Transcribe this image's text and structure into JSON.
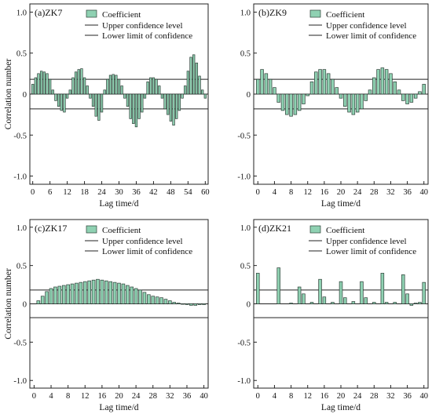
{
  "colors": {
    "bar_fill": "#8fd1b2",
    "bar_stroke": "#2d3f37",
    "line": "#222222"
  },
  "chart_data": [
    {
      "type": "bar",
      "title": "(a)ZK7",
      "xlabel": "Lag time/d",
      "ylabel": "Correlation number",
      "xlim": [
        -1,
        61
      ],
      "ylim": [
        -1.1,
        1.1
      ],
      "xticks": [
        0,
        6,
        12,
        18,
        24,
        30,
        36,
        42,
        48,
        54,
        60
      ],
      "yticks": [
        -1.0,
        -0.5,
        0,
        0.5,
        1.0
      ],
      "ytick_labels": [
        "-1.0",
        "-0.5",
        "0",
        "0.5",
        "1.0"
      ],
      "legend": {
        "position": "top-left",
        "entries": [
          "Coefficient",
          "Upper confidence level",
          "Lower limit of confidence"
        ]
      },
      "confidence": {
        "upper": 0.18,
        "lower": -0.18
      },
      "x": [
        0,
        1,
        2,
        3,
        4,
        5,
        6,
        7,
        8,
        9,
        10,
        11,
        12,
        13,
        14,
        15,
        16,
        17,
        18,
        19,
        20,
        21,
        22,
        23,
        24,
        25,
        26,
        27,
        28,
        29,
        30,
        31,
        32,
        33,
        34,
        35,
        36,
        37,
        38,
        39,
        40,
        41,
        42,
        43,
        44,
        45,
        46,
        47,
        48,
        49,
        50,
        51,
        52,
        53,
        54,
        55,
        56,
        57,
        58,
        59,
        60
      ],
      "values": [
        0.12,
        0.2,
        0.25,
        0.28,
        0.27,
        0.25,
        0.18,
        0.05,
        -0.08,
        -0.15,
        -0.2,
        -0.22,
        -0.05,
        0.05,
        0.2,
        0.27,
        0.3,
        0.31,
        0.2,
        0.1,
        -0.05,
        -0.15,
        -0.27,
        -0.32,
        -0.22,
        0.05,
        0.18,
        0.23,
        0.24,
        0.23,
        0.18,
        0.1,
        -0.05,
        -0.15,
        -0.3,
        -0.36,
        -0.4,
        -0.3,
        -0.22,
        -0.05,
        0.15,
        0.2,
        0.2,
        0.18,
        0.1,
        -0.05,
        -0.18,
        -0.25,
        -0.33,
        -0.38,
        -0.3,
        -0.2,
        -0.05,
        0.1,
        0.28,
        0.45,
        0.48,
        0.38,
        0.22,
        0.05,
        -0.05
      ]
    },
    {
      "type": "bar",
      "title": "(b)ZK9",
      "xlabel": "Lag time/d",
      "ylabel": "",
      "xlim": [
        -1,
        41
      ],
      "ylim": [
        -1.1,
        1.1
      ],
      "xticks": [
        0,
        4,
        8,
        12,
        16,
        20,
        24,
        28,
        32,
        36,
        40
      ],
      "yticks": [
        -1.0,
        -0.5,
        0,
        0.5,
        1.0
      ],
      "ytick_labels": [
        "-1.0",
        "-0.5",
        "0",
        "0.5",
        "1.0"
      ],
      "legend": {
        "position": "top-left",
        "entries": [
          "Coefficient",
          "Upper confidence level",
          "Lower limit of confidence"
        ]
      },
      "confidence": {
        "upper": 0.18,
        "lower": -0.18
      },
      "x": [
        0,
        1,
        2,
        3,
        4,
        5,
        6,
        7,
        8,
        9,
        10,
        11,
        12,
        13,
        14,
        15,
        16,
        17,
        18,
        19,
        20,
        21,
        22,
        23,
        24,
        25,
        26,
        27,
        28,
        29,
        30,
        31,
        32,
        33,
        34,
        35,
        36,
        37,
        38,
        39,
        40
      ],
      "values": [
        0.18,
        0.3,
        0.25,
        0.18,
        0.08,
        -0.1,
        -0.2,
        -0.25,
        -0.27,
        -0.25,
        -0.2,
        -0.12,
        -0.02,
        0.15,
        0.27,
        0.3,
        0.3,
        0.25,
        0.18,
        0.08,
        -0.05,
        -0.15,
        -0.22,
        -0.25,
        -0.22,
        -0.18,
        -0.08,
        0.05,
        0.2,
        0.3,
        0.32,
        0.3,
        0.25,
        0.15,
        0.05,
        -0.08,
        -0.12,
        -0.1,
        -0.05,
        0.03,
        0.12
      ]
    },
    {
      "type": "bar",
      "title": "(c)ZK17",
      "xlabel": "Lag time/d",
      "ylabel": "Correlation number",
      "xlim": [
        -1,
        41
      ],
      "ylim": [
        -1.1,
        1.1
      ],
      "xticks": [
        0,
        4,
        8,
        12,
        16,
        20,
        24,
        28,
        32,
        36,
        40
      ],
      "yticks": [
        -1.0,
        -0.5,
        0,
        0.5,
        1.0
      ],
      "ytick_labels": [
        "-1.0",
        "-0.5",
        "0",
        "0.5",
        "1.0"
      ],
      "legend": {
        "position": "top-left",
        "entries": [
          "Coefficient",
          "Upper confidence level",
          "Lower limit of confidence"
        ]
      },
      "confidence": {
        "upper": 0.18,
        "lower": -0.18
      },
      "x": [
        1,
        2,
        3,
        4,
        5,
        6,
        7,
        8,
        9,
        10,
        11,
        12,
        13,
        14,
        15,
        16,
        17,
        18,
        19,
        20,
        21,
        22,
        23,
        24,
        25,
        26,
        27,
        28,
        29,
        30,
        31,
        32,
        33,
        34,
        35,
        36,
        37,
        38,
        39,
        40
      ],
      "values": [
        0.04,
        0.1,
        0.16,
        0.2,
        0.22,
        0.23,
        0.24,
        0.25,
        0.26,
        0.27,
        0.28,
        0.29,
        0.3,
        0.31,
        0.32,
        0.31,
        0.3,
        0.29,
        0.28,
        0.27,
        0.26,
        0.24,
        0.22,
        0.2,
        0.18,
        0.15,
        0.12,
        0.1,
        0.09,
        0.08,
        0.06,
        0.04,
        0.02,
        0.01,
        0.0,
        -0.01,
        -0.02,
        -0.02,
        -0.01,
        -0.01
      ]
    },
    {
      "type": "bar",
      "title": "(d)ZK21",
      "xlabel": "Lag time/d",
      "ylabel": "",
      "xlim": [
        -1,
        41
      ],
      "ylim": [
        -1.1,
        1.1
      ],
      "xticks": [
        0,
        4,
        8,
        12,
        16,
        20,
        24,
        28,
        32,
        36,
        40
      ],
      "yticks": [
        -1.0,
        -0.5,
        0,
        0.5,
        1.0
      ],
      "ytick_labels": [
        "-1.0",
        "-0.5",
        "0",
        "0.5",
        "1.0"
      ],
      "legend": {
        "position": "top-left",
        "entries": [
          "Coefficient",
          "Upper confidence level",
          "Lower limit of confidence"
        ]
      },
      "confidence": {
        "upper": 0.18,
        "lower": -0.18
      },
      "x": [
        0,
        5,
        8,
        10,
        11,
        13,
        15,
        16,
        18,
        20,
        21,
        23,
        25,
        26,
        28,
        30,
        31,
        33,
        35,
        36,
        37,
        38,
        39,
        40
      ],
      "values": [
        0.4,
        0.47,
        0.01,
        0.22,
        0.13,
        0.02,
        0.32,
        0.09,
        0.02,
        0.29,
        0.08,
        0.03,
        0.29,
        0.08,
        0.02,
        0.4,
        0.02,
        0.02,
        0.38,
        0.13,
        -0.02,
        0.01,
        0.02,
        0.28
      ]
    }
  ]
}
